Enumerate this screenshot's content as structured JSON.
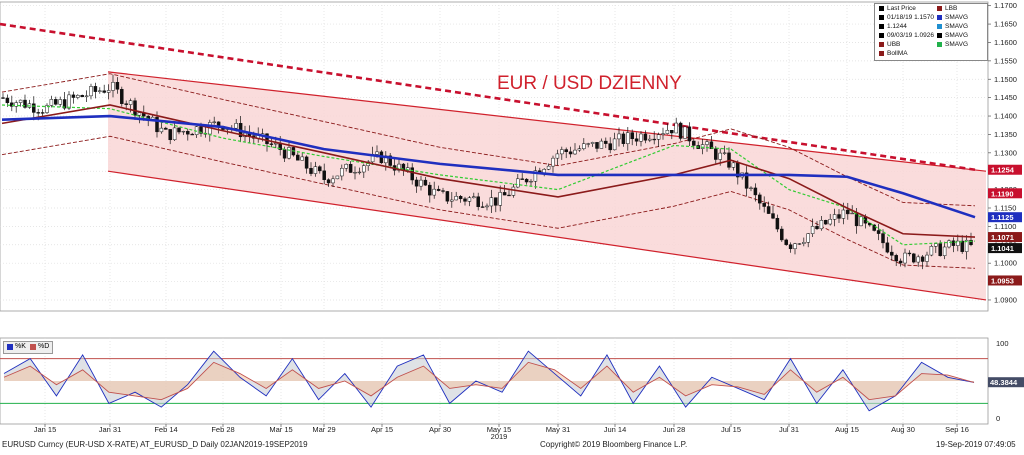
{
  "chart_data": [
    {
      "type": "line",
      "title": "EUR / USD DZIENNY",
      "xlabel": "2019",
      "ylabel": "",
      "ylim": [
        1.087,
        1.171
      ],
      "grid": true,
      "legend_position": "top-right",
      "x_ticks": [
        "Jan 15",
        "Jan 31",
        "Feb 14",
        "Feb 28",
        "Mar 15",
        "Mar 29",
        "Apr 15",
        "Apr 30",
        "May 15",
        "May 31",
        "Jun 14",
        "Jun 28",
        "Jul 15",
        "Jul 31",
        "Aug 15",
        "Aug 30",
        "Sep 16"
      ],
      "y_ticks": [
        "1.1700",
        "1.1650",
        "1.1600",
        "1.1550",
        "1.1500",
        "1.1450",
        "1.1400",
        "1.1350",
        "1.1300",
        "1.1250",
        "1.1200",
        "1.1150",
        "1.1100",
        "1.1050",
        "1.1000",
        "1.0950",
        "1.0900"
      ],
      "price_tags": [
        {
          "value": "1.1254",
          "color": "#c8102e"
        },
        {
          "value": "1.1190",
          "color": "#c8102e"
        },
        {
          "value": "1.1125",
          "color": "#1f2fbf"
        },
        {
          "value": "1.1071",
          "color": "#8b1a1a"
        },
        {
          "value": "1.1041",
          "color": "#111111"
        },
        {
          "value": "1.0953",
          "color": "#8b1a1a"
        }
      ],
      "legend": [
        {
          "label": "Last Price",
          "color": "#000000"
        },
        {
          "label": "01/18/19 1.1570",
          "color": "#000000"
        },
        {
          "label": "1.1244",
          "color": "#000000"
        },
        {
          "label": "09/03/19 1.0926",
          "color": "#000000"
        },
        {
          "label": "UBB",
          "color": "#8b1a1a"
        },
        {
          "label": "BollMA",
          "color": "#8b1a1a"
        },
        {
          "label": "LBB",
          "color": "#8b1a1a"
        },
        {
          "label": "SMAVG",
          "color": "#1f2fbf"
        },
        {
          "label": "SMAVG",
          "color": "#1f8fd0"
        },
        {
          "label": "SMAVG",
          "color": "#000000"
        },
        {
          "label": "SMAVG",
          "color": "#22b14c"
        }
      ],
      "series": [
        {
          "name": "Last Price",
          "x": [
            "Jan 02",
            "Jan 15",
            "Jan 31",
            "Feb 14",
            "Feb 28",
            "Mar 15",
            "Mar 29",
            "Apr 15",
            "Apr 30",
            "May 15",
            "May 31",
            "Jun 14",
            "Jun 28",
            "Jul 15",
            "Jul 31",
            "Aug 15",
            "Aug 30",
            "Sep 16",
            "Sep 19"
          ],
          "values": [
            1.145,
            1.142,
            1.148,
            1.135,
            1.138,
            1.131,
            1.123,
            1.129,
            1.118,
            1.117,
            1.13,
            1.133,
            1.137,
            1.127,
            1.105,
            1.114,
            1.101,
            1.105,
            1.1041
          ]
        },
        {
          "name": "SMAVG",
          "x": [
            "Jan 02",
            "Jan 31",
            "Feb 28",
            "Mar 29",
            "Apr 30",
            "May 31",
            "Jun 28",
            "Jul 31",
            "Aug 15",
            "Aug 30",
            "Sep 19"
          ],
          "values": [
            1.139,
            1.14,
            1.137,
            1.131,
            1.127,
            1.124,
            1.124,
            1.124,
            1.1235,
            1.119,
            1.1125
          ]
        },
        {
          "name": "BollMA",
          "x": [
            "Jan 02",
            "Jan 31",
            "Feb 28",
            "Mar 29",
            "Apr 30",
            "May 31",
            "Jun 28",
            "Jul 15",
            "Jul 31",
            "Aug 15",
            "Aug 30",
            "Sep 19"
          ],
          "values": [
            1.138,
            1.143,
            1.136,
            1.13,
            1.123,
            1.118,
            1.124,
            1.128,
            1.123,
            1.115,
            1.108,
            1.1071
          ]
        },
        {
          "name": "SMAVG",
          "x": [
            "Jan 02",
            "Jan 31",
            "Feb 28",
            "Mar 29",
            "Apr 30",
            "May 31",
            "Jun 28",
            "Jul 15",
            "Jul 31",
            "Aug 15",
            "Aug 30",
            "Sep 19"
          ],
          "values": [
            1.143,
            1.142,
            1.134,
            1.129,
            1.124,
            1.12,
            1.132,
            1.131,
            1.12,
            1.115,
            1.105,
            1.106
          ]
        }
      ],
      "channel": {
        "upper": [
          1.152,
          1.125
        ],
        "lower": [
          1.125,
          1.09
        ]
      },
      "trendline": {
        "name": "SMAVG",
        "values": [
          1.165,
          1.1254
        ]
      }
    },
    {
      "type": "line",
      "title": "",
      "ylim": [
        -5,
        105
      ],
      "y_ticks": [
        "100",
        "50",
        "0"
      ],
      "legend": [
        {
          "label": "%K",
          "color": "#1f2fbf"
        },
        {
          "label": "%D",
          "color": "#c0504d"
        }
      ],
      "last_value": "48.3844",
      "levels": [
        80,
        20
      ],
      "series": [
        {
          "name": "%K",
          "values": [
            60,
            80,
            30,
            85,
            20,
            35,
            15,
            45,
            90,
            55,
            30,
            80,
            25,
            60,
            15,
            70,
            85,
            20,
            50,
            35,
            90,
            60,
            30,
            85,
            20,
            70,
            15,
            55,
            40,
            25,
            80,
            20,
            65,
            10,
            30,
            75,
            55,
            48
          ]
        },
        {
          "name": "%D",
          "values": [
            55,
            70,
            45,
            65,
            35,
            30,
            25,
            40,
            75,
            60,
            40,
            65,
            40,
            50,
            30,
            55,
            70,
            40,
            45,
            40,
            75,
            65,
            40,
            70,
            35,
            55,
            30,
            45,
            42,
            32,
            65,
            35,
            55,
            25,
            30,
            60,
            58,
            48
          ]
        }
      ]
    }
  ],
  "footer": {
    "left": "EURUSD Curncy (EUR-USD X-RATE) AT_EURUSD_D  Daily 02JAN2019-19SEP2019",
    "center": "Copyright© 2019 Bloomberg Finance L.P.",
    "right": "19-Sep-2019 07:49:05"
  },
  "colors": {
    "channel_fill": "#f9d6d6",
    "channel_line": "#d0212c",
    "trend_dashed": "#c8102e",
    "blue_ma": "#1f2fbf",
    "boll": "#8b1a1a",
    "green_ma": "#33cc33",
    "candle_up": "#ffffff",
    "candle_down": "#111111",
    "title": "#d0212c"
  }
}
